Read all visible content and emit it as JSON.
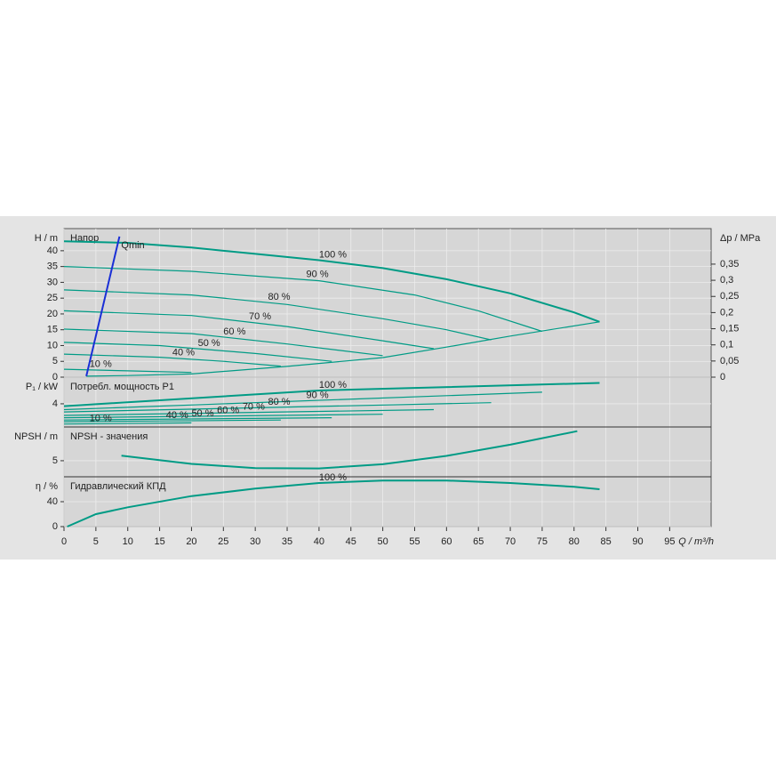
{
  "chart_data": [
    {
      "type": "line",
      "title": "Напор",
      "ylabel": "H / m",
      "y2label": "Δp / MPa",
      "ylim": [
        0,
        47
      ],
      "yticks": [
        0,
        5,
        10,
        15,
        20,
        25,
        30,
        35,
        40
      ],
      "y2lim": [
        0,
        0.46
      ],
      "y2ticks": [
        0,
        {
          "value": 0.05,
          "label": "0,05"
        },
        {
          "value": 0.1,
          "label": "0,1"
        },
        {
          "value": 0.15,
          "label": "0,15"
        },
        {
          "value": 0.2,
          "label": "0,2"
        },
        {
          "value": 0.25,
          "label": "0,25"
        },
        {
          "value": 0.3,
          "label": "0,3"
        },
        {
          "value": 0.35,
          "label": "0,35"
        }
      ],
      "grid": true,
      "series": [
        {
          "name": "100 %",
          "color": "#009b85",
          "x": [
            0,
            10,
            20,
            30,
            40,
            50,
            60,
            70,
            80,
            84
          ],
          "values": [
            43,
            42.5,
            41,
            39,
            37,
            34.5,
            31,
            26.5,
            20.5,
            17.5
          ]
        },
        {
          "name": "90 %",
          "color": "#009b85",
          "x": [
            0,
            20,
            40,
            55,
            65,
            75
          ],
          "values": [
            35,
            33.5,
            30.5,
            26,
            21,
            14.5
          ]
        },
        {
          "name": "80 %",
          "color": "#009b85",
          "x": [
            0,
            20,
            35,
            50,
            60,
            67
          ],
          "values": [
            27.6,
            26,
            23,
            18.5,
            15,
            11.8
          ]
        },
        {
          "name": "70 %",
          "color": "#009b85",
          "x": [
            0,
            20,
            35,
            50,
            58
          ],
          "values": [
            21,
            19.5,
            16,
            11.5,
            9
          ]
        },
        {
          "name": "60 %",
          "color": "#009b85",
          "x": [
            0,
            20,
            35,
            50
          ],
          "values": [
            15.2,
            13.8,
            10.5,
            6.8
          ]
        },
        {
          "name": "50 %",
          "color": "#009b85",
          "x": [
            0,
            15,
            30,
            42
          ],
          "values": [
            11,
            10,
            7.5,
            5
          ]
        },
        {
          "name": "40 %",
          "color": "#009b85",
          "x": [
            0,
            15,
            25,
            34
          ],
          "values": [
            7.3,
            6.3,
            5,
            3.5
          ]
        },
        {
          "name": "10 %",
          "color": "#009b85",
          "x": [
            0,
            10,
            20
          ],
          "values": [
            2.5,
            2,
            1.5
          ]
        },
        {
          "color": "#009b85",
          "x": [
            3.5,
            10,
            20,
            35,
            50,
            60,
            70,
            84
          ],
          "values": [
            0.3,
            0.5,
            1,
            3.4,
            6.2,
            9.5,
            13,
            17.5
          ]
        },
        {
          "name": "Qmin",
          "color": "#1a2fd6",
          "x": [
            3.5,
            8.7
          ],
          "values": [
            0.3,
            44.5
          ]
        }
      ]
    },
    {
      "type": "line",
      "title": "Потребл. мощность P1",
      "ylabel": "P₁ / kW",
      "ylim": [
        0,
        8.6
      ],
      "yticks": [
        4
      ],
      "grid": true,
      "series": [
        {
          "name": "100 %",
          "color": "#009b85",
          "x": [
            0,
            40,
            84
          ],
          "values": [
            3.6,
            6.3,
            7.6
          ]
        },
        {
          "name": "90 %",
          "color": "#009b85",
          "x": [
            0,
            75
          ],
          "values": [
            3.0,
            6.0
          ]
        },
        {
          "name": "80 %",
          "color": "#009b85",
          "x": [
            0,
            67
          ],
          "values": [
            2.6,
            4.2
          ]
        },
        {
          "name": "70 %",
          "color": "#009b85",
          "x": [
            0,
            58
          ],
          "values": [
            2.0,
            3.0
          ]
        },
        {
          "name": "60 %",
          "color": "#009b85",
          "x": [
            0,
            50
          ],
          "values": [
            1.6,
            2.2
          ]
        },
        {
          "name": "50 %",
          "color": "#009b85",
          "x": [
            0,
            42
          ],
          "values": [
            1.2,
            1.6
          ]
        },
        {
          "name": "40 %",
          "color": "#009b85",
          "x": [
            0,
            34
          ],
          "values": [
            0.9,
            1.2
          ]
        },
        {
          "name": "10 %",
          "color": "#009b85",
          "x": [
            0,
            20
          ],
          "values": [
            0.5,
            0.7
          ]
        }
      ]
    },
    {
      "type": "line",
      "title": "NPSH - значения",
      "ylabel": "NPSH / m",
      "ylim": [
        0,
        15.5
      ],
      "yticks": [
        5
      ],
      "grid": true,
      "series": [
        {
          "color": "#009b85",
          "x": [
            9,
            20,
            30,
            40,
            50,
            60,
            70,
            80.5
          ],
          "values": [
            6.6,
            4,
            2.7,
            2.6,
            3.9,
            6.5,
            10,
            14.2
          ]
        }
      ]
    },
    {
      "type": "line",
      "title": "Гидравлический КПД",
      "ylabel": "η / %",
      "xlabel": "Q / m³/h",
      "ylim": [
        0,
        80
      ],
      "yticks": [
        0,
        40
      ],
      "grid": true,
      "xlim": [
        0,
        101.5
      ],
      "xticks": [
        0,
        5,
        10,
        15,
        20,
        25,
        30,
        35,
        40,
        45,
        50,
        55,
        60,
        65,
        70,
        75,
        80,
        85,
        90,
        95
      ],
      "series": [
        {
          "name": "100 %",
          "color": "#009b85",
          "x": [
            0.5,
            5,
            10,
            20,
            30,
            40,
            50,
            60,
            70,
            80,
            84
          ],
          "values": [
            0,
            20,
            31,
            49,
            61,
            70,
            74,
            74,
            70,
            64,
            60
          ]
        }
      ]
    }
  ]
}
